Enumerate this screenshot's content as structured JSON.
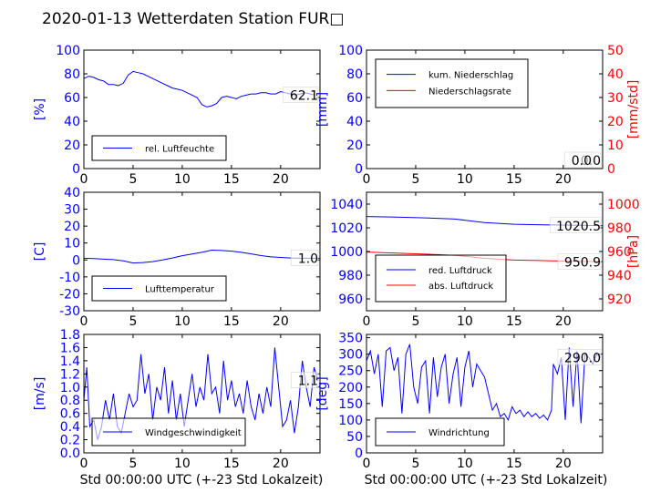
{
  "title": "2020-01-13 Wetterdaten Station FUR□",
  "colors": {
    "left": "#0000ff",
    "right": "#ff0000",
    "axis": "#000000"
  },
  "xlabel": "Std 00:00:00 UTC (+-23 Std Lokalzeit)",
  "chart_data": [
    {
      "type": "line",
      "id": "humidity",
      "xlim": [
        0,
        24
      ],
      "xticks": [
        0,
        5,
        10,
        15,
        20
      ],
      "ylim": [
        0,
        100
      ],
      "yticks": [
        0,
        20,
        40,
        60,
        80,
        100
      ],
      "ylabel": "[%]",
      "current_value": "62.1",
      "legend_location": "lower-left",
      "series": [
        {
          "name": "rel. Luftfeuchte",
          "color": "#0000ff",
          "points": [
            [
              0,
              76
            ],
            [
              0.5,
              78
            ],
            [
              1,
              77
            ],
            [
              1.5,
              75
            ],
            [
              2,
              74
            ],
            [
              2.5,
              71
            ],
            [
              3,
              71
            ],
            [
              3.5,
              70
            ],
            [
              4,
              72
            ],
            [
              4.5,
              79
            ],
            [
              5,
              82
            ],
            [
              5.5,
              81
            ],
            [
              6,
              80
            ],
            [
              6.5,
              78
            ],
            [
              7,
              76
            ],
            [
              7.5,
              74
            ],
            [
              8,
              72
            ],
            [
              8.5,
              70
            ],
            [
              9,
              68
            ],
            [
              9.5,
              67
            ],
            [
              10,
              66
            ],
            [
              10.5,
              64
            ],
            [
              11,
              62
            ],
            [
              11.5,
              60
            ],
            [
              12,
              54
            ],
            [
              12.5,
              52
            ],
            [
              13,
              53
            ],
            [
              13.5,
              55
            ],
            [
              14,
              60
            ],
            [
              14.5,
              61
            ],
            [
              15,
              60
            ],
            [
              15.5,
              59
            ],
            [
              16,
              61
            ],
            [
              16.5,
              62
            ],
            [
              17,
              63
            ],
            [
              17.5,
              63
            ],
            [
              18,
              64
            ],
            [
              18.5,
              64
            ],
            [
              19,
              63
            ],
            [
              19.5,
              63
            ],
            [
              20,
              65
            ],
            [
              20.5,
              64
            ],
            [
              21,
              63
            ],
            [
              21.5,
              62
            ],
            [
              22,
              63
            ],
            [
              22.5,
              64
            ],
            [
              23,
              63
            ],
            [
              23.5,
              62
            ]
          ]
        }
      ]
    },
    {
      "type": "line",
      "id": "precip",
      "xlim": [
        0,
        24
      ],
      "xticks": [
        0,
        5,
        10,
        15,
        20
      ],
      "ylim": [
        0,
        100
      ],
      "yticks": [
        0,
        20,
        40,
        60,
        80,
        100
      ],
      "ylabel": "[mm]",
      "ylim_right": [
        0,
        50
      ],
      "yticks_right": [
        0,
        10,
        20,
        30,
        40,
        50
      ],
      "ylabel_right": "[mm/std]",
      "current_value": "0.0",
      "current_value_right": "0.0",
      "legend_location": "upper-left",
      "series": [
        {
          "name": "kum. Niederschlag",
          "color": "#0000ff",
          "axis": "left",
          "points": [
            [
              0,
              0
            ],
            [
              24,
              0
            ]
          ]
        },
        {
          "name": "Niederschlagsrate",
          "color": "#ff0000",
          "axis": "right",
          "points": [
            [
              0,
              0
            ],
            [
              24,
              0
            ]
          ]
        }
      ]
    },
    {
      "type": "line",
      "id": "temperature",
      "xlim": [
        0,
        24
      ],
      "xticks": [
        0,
        5,
        10,
        15,
        20
      ],
      "ylim": [
        -30,
        40
      ],
      "yticks": [
        -30,
        -20,
        -10,
        0,
        10,
        20,
        30,
        40
      ],
      "ylabel": "[C]",
      "current_value": "1.0",
      "legend_location": "lower-left",
      "series": [
        {
          "name": "Lufttemperatur",
          "color": "#0000ff",
          "points": [
            [
              0,
              1.0
            ],
            [
              1,
              0.8
            ],
            [
              2,
              0.5
            ],
            [
              3,
              0.2
            ],
            [
              4,
              -0.5
            ],
            [
              5,
              -1.8
            ],
            [
              6,
              -1.5
            ],
            [
              7,
              -1.0
            ],
            [
              8,
              0
            ],
            [
              9,
              1.2
            ],
            [
              10,
              2.5
            ],
            [
              11,
              3.5
            ],
            [
              12,
              4.5
            ],
            [
              13,
              5.8
            ],
            [
              14,
              5.6
            ],
            [
              15,
              5.2
            ],
            [
              16,
              4.5
            ],
            [
              17,
              3.6
            ],
            [
              18,
              2.6
            ],
            [
              19,
              1.8
            ],
            [
              20,
              1.5
            ],
            [
              21,
              1.2
            ],
            [
              22,
              1.0
            ],
            [
              23,
              1.0
            ],
            [
              24,
              1.0
            ]
          ]
        }
      ]
    },
    {
      "type": "line",
      "id": "pressure",
      "xlim": [
        0,
        24
      ],
      "xticks": [
        0,
        5,
        10,
        15,
        20
      ],
      "ylim": [
        950,
        1050
      ],
      "yticks": [
        960,
        980,
        1000,
        1020,
        1040
      ],
      "ylabel": "",
      "ylim_right": [
        910,
        1010
      ],
      "yticks_right": [
        920,
        940,
        960,
        980,
        1000
      ],
      "ylabel_right": "[hPa]",
      "current_value": "1020.5",
      "current_value_right": "950.9",
      "legend_location": "lower-left",
      "series": [
        {
          "name": "red. Luftdruck",
          "color": "#0000ff",
          "axis": "left",
          "points": [
            [
              0,
              1029.5
            ],
            [
              3,
              1029
            ],
            [
              6,
              1028.4
            ],
            [
              9,
              1027.4
            ],
            [
              12,
              1024.5
            ],
            [
              15,
              1023
            ],
            [
              18,
              1022.5
            ],
            [
              21,
              1022.2
            ],
            [
              24,
              1021.7
            ]
          ]
        },
        {
          "name": "abs. Luftdruck",
          "color": "#ff0000",
          "axis": "right",
          "points": [
            [
              0,
              959.5
            ],
            [
              3,
              958.6
            ],
            [
              6,
              957.8
            ],
            [
              9,
              956.8
            ],
            [
              12,
              954.2
            ],
            [
              15,
              952.8
            ],
            [
              18,
              952.3
            ],
            [
              21,
              951.8
            ],
            [
              24,
              951.3
            ]
          ]
        }
      ]
    },
    {
      "type": "line",
      "id": "windspeed",
      "xlim": [
        0,
        24
      ],
      "xticks": [
        0,
        5,
        10,
        15,
        20
      ],
      "ylim": [
        0,
        1.8
      ],
      "yticks": [
        0.0,
        0.2,
        0.4,
        0.6,
        0.8,
        1.0,
        1.2,
        1.4,
        1.6,
        1.8
      ],
      "ylabel": "[m/s]",
      "current_value": "1.1",
      "legend_location": "lower-left",
      "series": [
        {
          "name": "Windgeschwindigkeit",
          "color": "#0000ff",
          "points": [
            [
              0,
              0.8
            ],
            [
              0.3,
              1.3
            ],
            [
              0.6,
              0.4
            ],
            [
              1,
              0.5
            ],
            [
              1.4,
              0.2
            ],
            [
              1.8,
              0.4
            ],
            [
              2.2,
              0.8
            ],
            [
              2.6,
              0.5
            ],
            [
              3,
              0.9
            ],
            [
              3.4,
              0.4
            ],
            [
              3.8,
              0.3
            ],
            [
              4.2,
              0.6
            ],
            [
              4.6,
              0.9
            ],
            [
              5,
              0.7
            ],
            [
              5.4,
              0.8
            ],
            [
              5.8,
              1.5
            ],
            [
              6.2,
              0.9
            ],
            [
              6.6,
              1.2
            ],
            [
              7,
              0.5
            ],
            [
              7.4,
              1.0
            ],
            [
              7.8,
              0.8
            ],
            [
              8.2,
              1.3
            ],
            [
              8.6,
              0.6
            ],
            [
              9,
              1.1
            ],
            [
              9.4,
              0.5
            ],
            [
              9.8,
              0.9
            ],
            [
              10.2,
              0.4
            ],
            [
              10.6,
              0.8
            ],
            [
              11,
              1.2
            ],
            [
              11.4,
              0.7
            ],
            [
              11.8,
              1.0
            ],
            [
              12.2,
              0.8
            ],
            [
              12.6,
              1.5
            ],
            [
              13,
              0.9
            ],
            [
              13.4,
              1.0
            ],
            [
              13.8,
              0.6
            ],
            [
              14.2,
              1.4
            ],
            [
              14.6,
              0.8
            ],
            [
              15,
              1.1
            ],
            [
              15.4,
              0.7
            ],
            [
              15.8,
              0.9
            ],
            [
              16.2,
              0.6
            ],
            [
              16.6,
              1.1
            ],
            [
              17,
              0.7
            ],
            [
              17.4,
              0.5
            ],
            [
              17.8,
              0.9
            ],
            [
              18.2,
              0.6
            ],
            [
              18.6,
              1.0
            ],
            [
              19,
              0.7
            ],
            [
              19.4,
              1.6
            ],
            [
              19.8,
              1.0
            ],
            [
              20.2,
              0.4
            ],
            [
              20.6,
              0.5
            ],
            [
              21,
              0.8
            ],
            [
              21.4,
              0.3
            ],
            [
              21.8,
              0.7
            ],
            [
              22.2,
              1.4
            ],
            [
              22.6,
              1.0
            ],
            [
              23,
              0.7
            ],
            [
              23.4,
              1.3
            ],
            [
              23.8,
              1.1
            ]
          ]
        }
      ]
    },
    {
      "type": "line",
      "id": "winddir",
      "xlim": [
        0,
        24
      ],
      "xticks": [
        0,
        5,
        10,
        15,
        20
      ],
      "ylim": [
        0,
        360
      ],
      "yticks": [
        0,
        50,
        100,
        150,
        200,
        250,
        300,
        350
      ],
      "ylabel": "[deg]",
      "current_value": "290.0",
      "legend_location": "lower-left",
      "series": [
        {
          "name": "Windrichtung",
          "color": "#0000ff",
          "points": [
            [
              0,
              280
            ],
            [
              0.4,
              310
            ],
            [
              0.8,
              240
            ],
            [
              1.2,
              300
            ],
            [
              1.6,
              140
            ],
            [
              2,
              310
            ],
            [
              2.4,
              320
            ],
            [
              2.8,
              250
            ],
            [
              3.2,
              290
            ],
            [
              3.6,
              120
            ],
            [
              4,
              300
            ],
            [
              4.4,
              330
            ],
            [
              4.8,
              200
            ],
            [
              5.2,
              150
            ],
            [
              5.6,
              260
            ],
            [
              6,
              280
            ],
            [
              6.4,
              120
            ],
            [
              6.8,
              290
            ],
            [
              7.2,
              170
            ],
            [
              7.6,
              260
            ],
            [
              8,
              300
            ],
            [
              8.4,
              150
            ],
            [
              8.8,
              240
            ],
            [
              9.2,
              290
            ],
            [
              9.6,
              140
            ],
            [
              10,
              260
            ],
            [
              10.4,
              310
            ],
            [
              10.8,
              200
            ],
            [
              11.2,
              270
            ],
            [
              11.6,
              250
            ],
            [
              12,
              230
            ],
            [
              12.4,
              180
            ],
            [
              12.8,
              130
            ],
            [
              13.2,
              150
            ],
            [
              13.6,
              110
            ],
            [
              14,
              120
            ],
            [
              14.4,
              100
            ],
            [
              14.8,
              140
            ],
            [
              15.2,
              120
            ],
            [
              15.6,
              130
            ],
            [
              16,
              110
            ],
            [
              16.4,
              125
            ],
            [
              16.8,
              110
            ],
            [
              17.2,
              120
            ],
            [
              17.6,
              105
            ],
            [
              18,
              115
            ],
            [
              18.4,
              100
            ],
            [
              18.8,
              130
            ],
            [
              19,
              270
            ],
            [
              19.4,
              240
            ],
            [
              19.8,
              290
            ],
            [
              20.2,
              100
            ],
            [
              20.6,
              320
            ],
            [
              21,
              140
            ],
            [
              21.4,
              310
            ],
            [
              21.8,
              90
            ],
            [
              22.2,
              300
            ],
            [
              22.6,
              290
            ],
            [
              23,
              270
            ],
            [
              23.4,
              300
            ],
            [
              23.8,
              290
            ]
          ]
        }
      ]
    }
  ]
}
